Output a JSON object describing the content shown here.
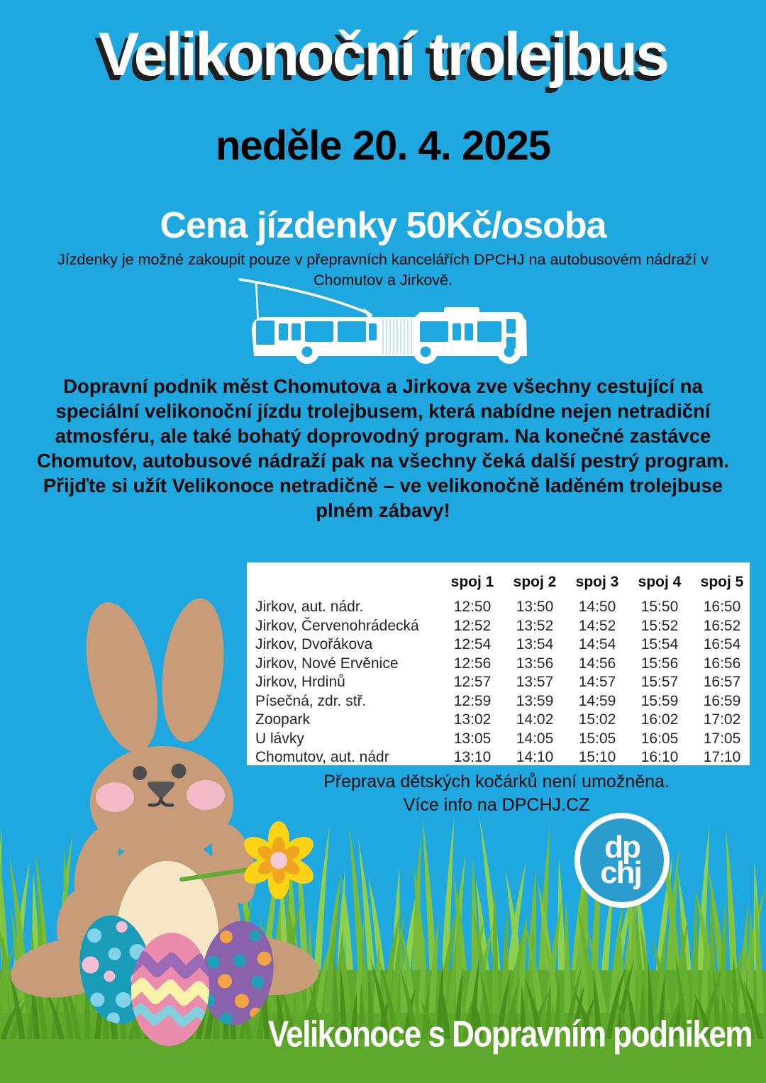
{
  "poster": {
    "title": "Velikonoční trolejbus",
    "date": "neděle 20. 4. 2025",
    "price": "Cena jízdenky 50Kč/osoba",
    "ticket_note": "Jízdenky je možné zakoupit pouze v přepravních kancelářích DPCHJ na autobusovém nádraží v Chomutov a Jirkově.",
    "description": "Dopravní podnik měst Chomutova a Jirkova zve všechny cestující na speciální velikonoční jízdu trolejbusem, která nabídne nejen netradiční atmosféru, ale také bohatý doprovodný program. Na konečné zastávce Chomutov, autobusové nádraží pak na všechny čeká další pestrý program. Přijďte si užít Velikonoce netradičně – ve velikonočně laděném trolejbuse plném zábavy!",
    "stroller_note": "Přeprava dětských kočárků není umožněna.",
    "more_info": "Více info na DPCHJ.CZ",
    "tagline": "Velikonoce s Dopravním podnikem"
  },
  "timetable": {
    "columns": [
      "spoj 1",
      "spoj 2",
      "spoj 3",
      "spoj 4",
      "spoj 5"
    ],
    "rows": [
      {
        "stop": "Jirkov, aut. nádr.",
        "times": [
          "12:50",
          "13:50",
          "14:50",
          "15:50",
          "16:50"
        ]
      },
      {
        "stop": "Jirkov, Červenohrádecká",
        "times": [
          "12:52",
          "13:52",
          "14:52",
          "15:52",
          "16:52"
        ]
      },
      {
        "stop": "Jirkov, Dvořákova",
        "times": [
          "12:54",
          "13:54",
          "14:54",
          "15:54",
          "16:54"
        ]
      },
      {
        "stop": "Jirkov, Nové Ervěnice",
        "times": [
          "12:56",
          "13:56",
          "14:56",
          "15:56",
          "16:56"
        ]
      },
      {
        "stop": "Jirkov, Hrdinů",
        "times": [
          "12:57",
          "13:57",
          "14:57",
          "15:57",
          "16:57"
        ]
      },
      {
        "stop": "Písečná, zdr. stř.",
        "times": [
          "12:59",
          "13:59",
          "14:59",
          "15:59",
          "16:59"
        ]
      },
      {
        "stop": "Zoopark",
        "times": [
          "13:02",
          "14:02",
          "15:02",
          "16:02",
          "17:02"
        ]
      },
      {
        "stop": "U lávky",
        "times": [
          "13:05",
          "14:05",
          "15:05",
          "16:05",
          "17:05"
        ]
      },
      {
        "stop": "Chomutov, aut. nádr",
        "times": [
          "13:10",
          "14:10",
          "15:10",
          "16:10",
          "17:10"
        ]
      }
    ]
  },
  "logo": {
    "line1": "dp",
    "line2": "chj"
  },
  "icons": {
    "trolleybus": "trolleybus-illustration",
    "bunny": "easter-bunny-illustration",
    "eggs": "easter-eggs-illustration",
    "flower": "flower-icon",
    "grass": "grass-illustration",
    "logo": "dpchj-logo"
  },
  "colors": {
    "sky": "#1fa7e0",
    "grass": "#5ea92b",
    "grass_light": "#82c440",
    "logo_blue": "#2a9cce",
    "table_bg": "#ffffff",
    "text_black": "#0a0a0a",
    "title_white": "#ffffff",
    "bunny_tan": "#c89b79",
    "egg_teal": "#189cb8",
    "egg_pink": "#ec8cad",
    "egg_purple": "#8a62ab",
    "flower_yellow": "#fdd415"
  }
}
